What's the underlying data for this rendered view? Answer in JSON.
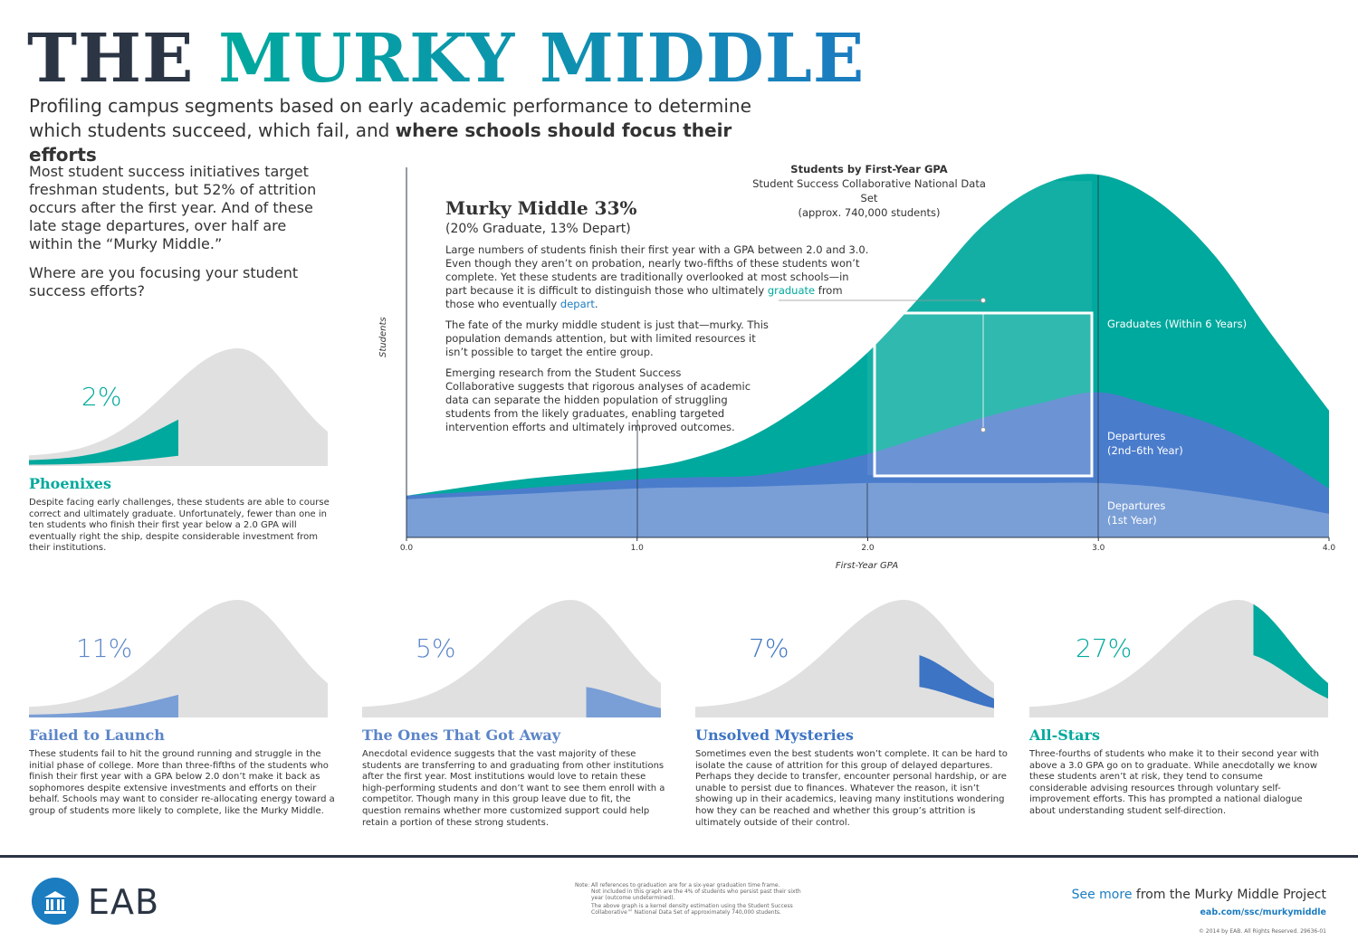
{
  "header": {
    "title_dark": "THE",
    "title_accent": "MURKY MIDDLE",
    "subtitle_a": "Profiling campus segments based on early academic performance to determine which students succeed, which fail, and ",
    "subtitle_b": "where schools should focus their efforts"
  },
  "intro": {
    "p1": "Most student success initiatives target freshman students, but 52% of attrition occurs after the first year. And of these late stage departures, over half are within the “Murky Middle.”",
    "p2": "Where are you focusing your student success efforts?"
  },
  "segments": [
    {
      "pct": "2%",
      "name": "Phoenixes",
      "color": "#00a99d",
      "text": "Despite facing early challenges, these students are able to course correct and ultimately graduate. Unfortunately, fewer than one in ten students who finish their first year below a 2.0 GPA will eventually right the ship, despite considerable investment from their institutions."
    },
    {
      "pct": "11%",
      "name": "Failed to Launch",
      "color": "#5b85c8",
      "text": "These students fail to hit the ground running and struggle in the initial phase of college. More than three-fifths of the students who finish their first year with a GPA below 2.0 don’t make it back as sophomores despite extensive investments and efforts on their behalf. Schools may want to consider re-allocating energy toward a group of students more likely to complete, like the Murky Middle."
    },
    {
      "pct": "5%",
      "name": "The Ones That Got Away",
      "color": "#5b85c8",
      "text": "Anecdotal evidence suggests that the vast majority of these students are transferring to and graduating from other institutions after the first year. Most institutions would love to retain these high-performing students and don’t want to see them enroll with a competitor. Though many in this group leave due to fit, the question remains whether more customized support could help retain a portion of these strong students."
    },
    {
      "pct": "7%",
      "name": "Unsolved Mysteries",
      "color": "#3d74c4",
      "text": "Sometimes even the best students won’t complete. It can be hard to isolate the cause of attrition for this group of delayed departures. Perhaps they decide to transfer, encounter personal hardship, or are unable to persist due to finances. Whatever the reason, it isn’t showing up in their academics, leaving many institutions wondering how they can be reached and whether this group’s attrition is ultimately outside of their control."
    },
    {
      "pct": "27%",
      "name": "All-Stars",
      "color": "#00a99d",
      "text": "Three-fourths of students who make it to their second year with above a 3.0 GPA go on to graduate. While anecdotally we know these students aren’t at risk, they tend to consume considerable advising resources through voluntary self-improvement efforts. This has prompted a national dialogue about understanding student self-direction."
    }
  ],
  "murky": {
    "title": "Murky Middle 33%",
    "sub": "(20% Graduate, 13% Depart)",
    "p1a": "Large numbers of students finish their first year with a GPA between 2.0 and 3.0. Even though they aren’t on probation, nearly two-fifths of these students won’t complete. Yet these students are traditionally overlooked at most schools—in part because it is difficult to distinguish those who ultimately ",
    "p1b": "graduate",
    "p1c": " from those who eventually ",
    "p1d": "depart",
    "p1e": ".",
    "p2": "The fate of the murky middle student is just that—murky. This population demands attention, but with limited resources it isn’t possible to target the entire group.",
    "p3": "Emerging research from the Student Success Collaborative suggests that rigorous analyses of academic data can separate the hidden population of struggling students from the likely graduates, enabling targeted intervention efforts and ultimately improved outcomes."
  },
  "chart_data": {
    "type": "area",
    "title": "Students by First-Year GPA",
    "subtitle": "Student Success Collaborative National Data Set",
    "subtitle2": "(approx. 740,000 students)",
    "xlabel": "First-Year GPA",
    "ylabel": "Students",
    "xlim": [
      0,
      4
    ],
    "x_ticks": [
      "0.0",
      "1.0",
      "2.0",
      "3.0",
      "4.0"
    ],
    "stacked": true,
    "x": [
      0,
      0.5,
      1.0,
      1.25,
      1.5,
      1.75,
      2.0,
      2.25,
      2.5,
      2.75,
      3.0,
      3.25,
      3.5,
      3.75,
      4.0
    ],
    "series": [
      {
        "name": "Departures (1st Year)",
        "color": "#7a9fd6",
        "values": [
          10.5,
          12,
          13.5,
          13.8,
          14,
          14.5,
          15,
          15,
          15,
          15,
          15,
          14,
          12,
          9.5,
          6.5
        ]
      },
      {
        "name": "Departures (2nd–6th Year)",
        "color": "#4a7ccc",
        "values": [
          1,
          1.5,
          2.5,
          2.8,
          3,
          5,
          8,
          13,
          18,
          22,
          25,
          22,
          19,
          14,
          7
        ]
      },
      {
        "name": "Graduates (Within 6 Years)",
        "color": "#00a99d",
        "values": [
          0,
          2.5,
          3,
          5.4,
          11,
          18.5,
          28,
          40,
          53,
          60,
          60,
          57,
          47,
          32.5,
          21.5
        ]
      }
    ],
    "legend_placement": "inline-right",
    "grid": false
  },
  "footer": {
    "logo": "EAB",
    "note_label": "Note:",
    "note1": "All references to graduation are for a six-year graduation time frame.",
    "note2": "Not included in this graph are the 4% of students who persist past their sixth year (outcome undetermined).",
    "note3": "The above graph is a kernel density estimation using the Student Success Collaborative™ National Data Set of approximately 740,000 students.",
    "see_more": "See more",
    "see_more_rest": " from the Murky Middle Project",
    "url": "eab.com/ssc/murkymiddle",
    "copyright": "© 2014 by EAB. All Rights Reserved. 29636-01"
  }
}
